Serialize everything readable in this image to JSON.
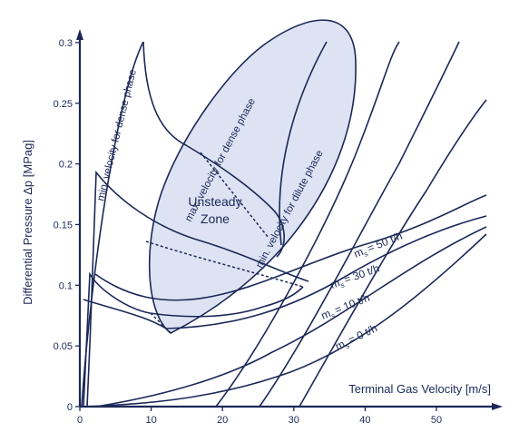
{
  "diagram": {
    "x_axis": {
      "title": "Terminal Gas Velocity [m/s]",
      "ticks": [
        {
          "value": 0,
          "label": "0"
        },
        {
          "value": 10,
          "label": "10"
        },
        {
          "value": 20,
          "label": "20"
        },
        {
          "value": 30,
          "label": "30"
        },
        {
          "value": 40,
          "label": "40"
        },
        {
          "value": 50,
          "label": "50"
        }
      ]
    },
    "y_axis": {
      "title": "Differential Pressure Δp [MPag]",
      "ticks": [
        {
          "value": 0,
          "label": "0"
        },
        {
          "value": 0.05,
          "label": "0.05"
        },
        {
          "value": 0.1,
          "label": "0.1"
        },
        {
          "value": 0.15,
          "label": "0.15"
        },
        {
          "value": 0.2,
          "label": "0.2"
        },
        {
          "value": 0.25,
          "label": "0.25"
        },
        {
          "value": 0.3,
          "label": "0.3"
        }
      ]
    },
    "zone": {
      "line1": "Unsteady",
      "line2": "Zone",
      "fill": "#dde3f3"
    },
    "boundary_labels": {
      "min_dense": "min. velocity for dense phase",
      "max_dense": "max. velocity for dense phase",
      "min_dilute": "min. velocity for dilute phase"
    },
    "mass_flow_curves": [
      {
        "label": "= 50 t/h"
      },
      {
        "label": "= 30 t/h"
      },
      {
        "label": "= 10 t/h"
      },
      {
        "label": "= 0 t/h"
      }
    ],
    "mass_symbol": "m",
    "mass_subscript": "s",
    "colors": {
      "ink": "#1b2858",
      "zone": "#dde3f3",
      "background": "#ffffff"
    }
  }
}
